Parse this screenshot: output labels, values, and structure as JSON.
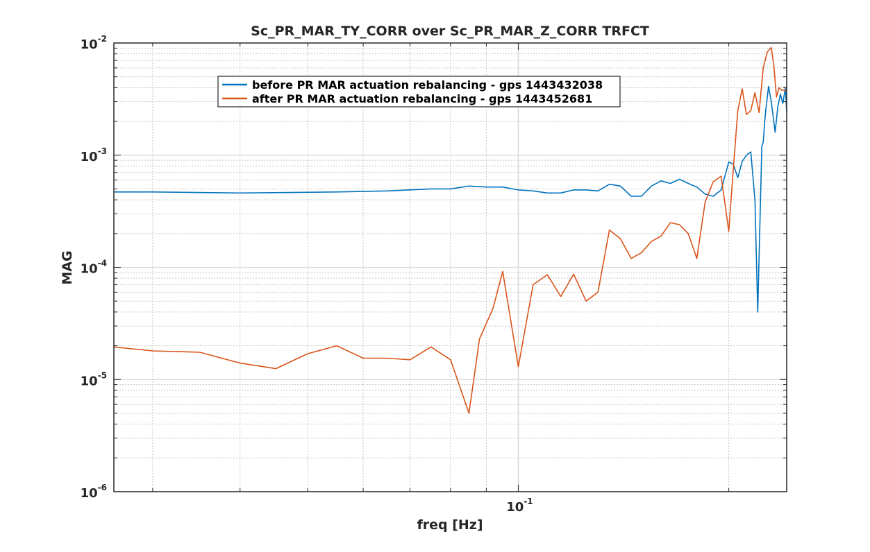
{
  "chart_data": {
    "type": "line",
    "title": "Sc_PR_MAR_TY_CORR over Sc_PR_MAR_Z_CORR  TRFCT",
    "xlabel": "freq [Hz]",
    "ylabel": "MAG",
    "xscale": "log",
    "yscale": "log",
    "xlim": [
      0.0264,
      0.242
    ],
    "ylim": [
      1e-06,
      0.01
    ],
    "grid": true,
    "minor_grid": true,
    "legend_position": "top-left",
    "x_tick_labels": [
      {
        "value": 0.1,
        "base": "10",
        "exp": "-1"
      }
    ],
    "y_tick_labels": [
      {
        "value": 1e-06,
        "base": "10",
        "exp": "-6"
      },
      {
        "value": 1e-05,
        "base": "10",
        "exp": "-5"
      },
      {
        "value": 0.0001,
        "base": "10",
        "exp": "-4"
      },
      {
        "value": 0.001,
        "base": "10",
        "exp": "-3"
      },
      {
        "value": 0.01,
        "base": "10",
        "exp": "-2"
      }
    ],
    "series": [
      {
        "name": "before PR MAR actuation rebalancing - gps 1443432038",
        "color": "#0072bd",
        "x": [
          0.0264,
          0.03,
          0.04,
          0.055,
          0.065,
          0.075,
          0.08,
          0.085,
          0.09,
          0.095,
          0.1,
          0.105,
          0.11,
          0.115,
          0.12,
          0.125,
          0.13,
          0.135,
          0.14,
          0.145,
          0.15,
          0.155,
          0.16,
          0.165,
          0.17,
          0.175,
          0.18,
          0.185,
          0.19,
          0.195,
          0.2,
          0.203,
          0.206,
          0.209,
          0.212,
          0.215,
          0.218,
          0.22,
          0.222,
          0.223,
          0.224,
          0.225,
          0.226,
          0.228,
          0.23,
          0.233,
          0.235,
          0.237,
          0.239,
          0.241,
          0.242
        ],
        "y": [
          0.00047,
          0.00047,
          0.00046,
          0.00047,
          0.00048,
          0.0005,
          0.0005,
          0.00053,
          0.00052,
          0.00052,
          0.00049,
          0.00048,
          0.00046,
          0.00046,
          0.00049,
          0.00049,
          0.00048,
          0.00055,
          0.00053,
          0.00043,
          0.00043,
          0.00053,
          0.00059,
          0.00056,
          0.00061,
          0.00056,
          0.00052,
          0.00045,
          0.00043,
          0.00049,
          0.00087,
          0.00083,
          0.00063,
          0.00088,
          0.001,
          0.00107,
          0.0004,
          4e-05,
          0.0004,
          0.0012,
          0.0013,
          0.0019,
          0.0026,
          0.0041,
          0.003,
          0.0016,
          0.0027,
          0.0035,
          0.0029,
          0.004,
          0.0024
        ]
      },
      {
        "name": "after PR MAR actuation rebalancing - gps 1443452681",
        "color": "#d95319",
        "x": [
          0.0264,
          0.03,
          0.035,
          0.04,
          0.045,
          0.05,
          0.055,
          0.06,
          0.065,
          0.07,
          0.075,
          0.08,
          0.085,
          0.088,
          0.092,
          0.095,
          0.1,
          0.105,
          0.11,
          0.115,
          0.12,
          0.125,
          0.13,
          0.135,
          0.14,
          0.145,
          0.15,
          0.155,
          0.16,
          0.165,
          0.17,
          0.175,
          0.18,
          0.185,
          0.19,
          0.195,
          0.2,
          0.203,
          0.206,
          0.209,
          0.212,
          0.215,
          0.218,
          0.221,
          0.224,
          0.227,
          0.23,
          0.232,
          0.234,
          0.236,
          0.238,
          0.24,
          0.242
        ],
        "y": [
          1.95e-05,
          1.8e-05,
          1.75e-05,
          1.4e-05,
          1.25e-05,
          1.7e-05,
          2e-05,
          1.55e-05,
          1.55e-05,
          1.5e-05,
          1.95e-05,
          1.5e-05,
          5e-06,
          2.3e-05,
          4.3e-05,
          9.2e-05,
          1.3e-05,
          7e-05,
          8.6e-05,
          5.5e-05,
          8.7e-05,
          5e-05,
          6e-05,
          0.000215,
          0.00018,
          0.00012,
          0.000135,
          0.00017,
          0.00019,
          0.00025,
          0.00024,
          0.0002,
          0.00012,
          0.00038,
          0.00058,
          0.00065,
          0.00021,
          0.00075,
          0.0025,
          0.0039,
          0.0023,
          0.0025,
          0.0036,
          0.0024,
          0.006,
          0.0083,
          0.0091,
          0.0063,
          0.0033,
          0.004,
          0.0038,
          0.0038,
          0.0038
        ]
      }
    ]
  }
}
